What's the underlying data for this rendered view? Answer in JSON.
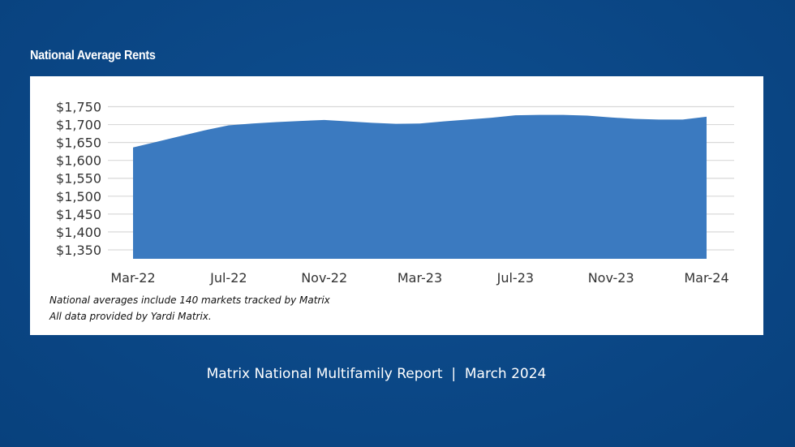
{
  "page": {
    "heading": "National Average Rents",
    "footer": "Matrix National Multifamily Report  |  March 2024",
    "notes": [
      "National averages include 140 markets tracked by Matrix",
      "All data provided by Yardi Matrix."
    ]
  },
  "colors": {
    "background": "#0a4a8a",
    "area_fill": "#3b7ac0",
    "grid": "#d9d9d9",
    "text": "#333333"
  },
  "chart_data": {
    "type": "area",
    "title": "National Average Rents",
    "xlabel": "",
    "ylabel": "",
    "ylim": [
      1325,
      1750
    ],
    "yticks": [
      1350,
      1400,
      1450,
      1500,
      1550,
      1600,
      1650,
      1700,
      1750
    ],
    "ytick_labels": [
      "$1,350",
      "$1,400",
      "$1,450",
      "$1,500",
      "$1,550",
      "$1,600",
      "$1,650",
      "$1,700",
      "$1,750"
    ],
    "xtick_labels": [
      "Mar-22",
      "Jul-22",
      "Nov-22",
      "Mar-23",
      "Jul-23",
      "Nov-23",
      "Mar-24"
    ],
    "x": [
      "Mar-22",
      "Apr-22",
      "May-22",
      "Jun-22",
      "Jul-22",
      "Aug-22",
      "Sep-22",
      "Oct-22",
      "Nov-22",
      "Dec-22",
      "Jan-23",
      "Feb-23",
      "Mar-23",
      "Apr-23",
      "May-23",
      "Jun-23",
      "Jul-23",
      "Aug-23",
      "Sep-23",
      "Oct-23",
      "Nov-23",
      "Dec-23",
      "Jan-24",
      "Feb-24",
      "Mar-24"
    ],
    "series": [
      {
        "values": [
          1636,
          1652,
          1668,
          1684,
          1698,
          1703,
          1707,
          1710,
          1713,
          1709,
          1705,
          1702,
          1703,
          1709,
          1714,
          1719,
          1726,
          1727,
          1727,
          1725,
          1720,
          1716,
          1714,
          1714,
          1722
        ]
      }
    ],
    "grid": true,
    "legend": "none"
  }
}
